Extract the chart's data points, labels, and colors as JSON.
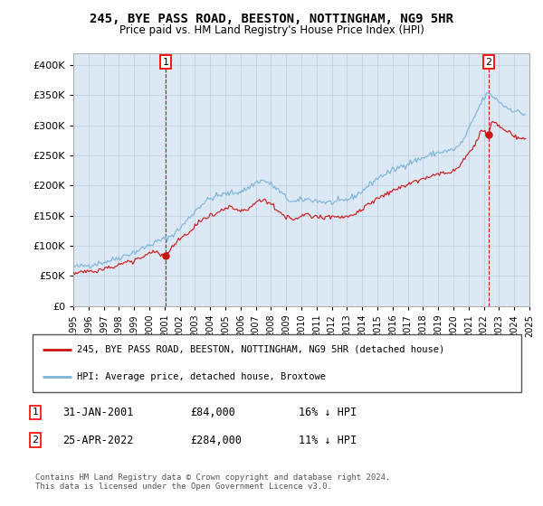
{
  "title": "245, BYE PASS ROAD, BEESTON, NOTTINGHAM, NG9 5HR",
  "subtitle": "Price paid vs. HM Land Registry's House Price Index (HPI)",
  "legend_line1": "245, BYE PASS ROAD, BEESTON, NOTTINGHAM, NG9 5HR (detached house)",
  "legend_line2": "HPI: Average price, detached house, Broxtowe",
  "annotation1_date": "31-JAN-2001",
  "annotation1_price": "£84,000",
  "annotation1_hpi": "16% ↓ HPI",
  "annotation2_date": "25-APR-2022",
  "annotation2_price": "£284,000",
  "annotation2_hpi": "11% ↓ HPI",
  "footer": "Contains HM Land Registry data © Crown copyright and database right 2024.\nThis data is licensed under the Open Government Licence v3.0.",
  "hpi_color": "#7ab3d8",
  "price_color": "#cc1111",
  "annotation_color": "#cc0000",
  "background_color": "#dce9f5",
  "plot_bg": "#ffffff",
  "ylim": [
    0,
    420000
  ],
  "yticks": [
    0,
    50000,
    100000,
    150000,
    200000,
    250000,
    300000,
    350000,
    400000
  ],
  "year_start": 1995,
  "year_end": 2025,
  "sale1_year": 2001.08,
  "sale1_price": 84000,
  "sale2_year": 2022.32,
  "sale2_price": 284000
}
